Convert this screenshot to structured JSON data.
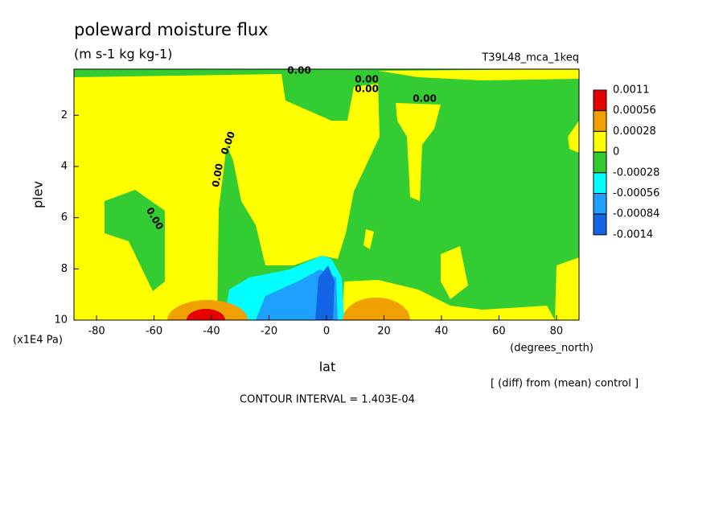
{
  "chart_data": {
    "type": "contour",
    "title": "poleward moisture flux",
    "subtitle": "(m s-1 kg kg-1)",
    "dataset": "T39L48_mca_1keq",
    "x_label": "lat",
    "x_units": "(degrees_north)",
    "y_label": "plev",
    "y_units": "(x1E4 Pa)",
    "xlim": [
      -87.86,
      87.86
    ],
    "xticks": [
      -80,
      -60,
      -40,
      -20,
      0,
      20,
      40,
      60,
      80
    ],
    "ylim": [
      10,
      0.2
    ],
    "yticks": [
      2,
      4,
      6,
      8,
      10
    ],
    "colorbar": {
      "levels": [
        0.0011,
        0.00056,
        0.00028,
        0,
        -0.00028,
        -0.00056,
        -0.00084,
        -0.0014
      ],
      "colors": [
        "#e60000",
        "#f0a000",
        "#ffff00",
        "#33cc33",
        "#00ffff",
        "#1ea0ff",
        "#1464e6"
      ]
    },
    "contour_labels": [
      "0.00",
      "0.00",
      "0.00",
      "0.00",
      "0.00",
      "0.00",
      "0.00"
    ],
    "notes": [
      "[ (diff) from (mean) control ]",
      "CONTOUR INTERVAL = 1.403E-04"
    ]
  }
}
